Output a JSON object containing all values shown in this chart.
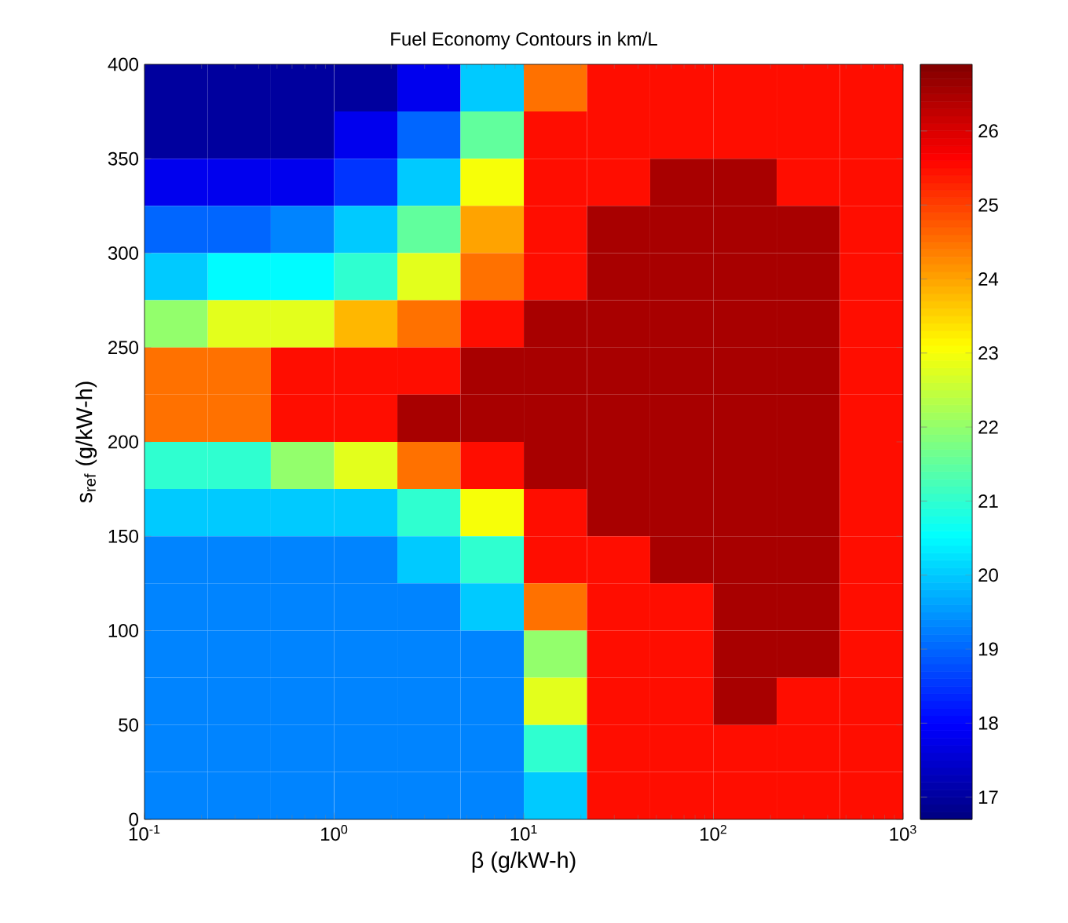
{
  "chart_data": {
    "type": "heatmap",
    "title": "Fuel Economy Contours in km/L",
    "xlabel": "β (g/kW-h)",
    "ylabel": "s$_{ref}$ (g/kW-h)",
    "log": "x",
    "xlim": [
      0.1,
      1000
    ],
    "ylim": [
      0,
      400
    ],
    "xticks": [
      {
        "value": 0.1,
        "label": "10$^{-1}$"
      },
      {
        "value": 1,
        "label": "10$^{0}$"
      },
      {
        "value": 10,
        "label": "10$^{1}$"
      },
      {
        "value": 100,
        "label": "10$^{2}$"
      },
      {
        "value": 1000,
        "label": "10$^{3}$"
      }
    ],
    "yticks": [
      0,
      50,
      100,
      150,
      200,
      250,
      300,
      350,
      400
    ],
    "clim": [
      16.7,
      26.9
    ],
    "cticks": [
      17,
      18,
      19,
      20,
      21,
      22,
      23,
      24,
      25,
      26
    ],
    "x": [
      0.147,
      0.316,
      0.681,
      1.47,
      3.16,
      6.81,
      14.7,
      31.6,
      68.1,
      147,
      316,
      681
    ],
    "y": [
      387.5,
      362.5,
      337.5,
      312.5,
      287.5,
      262.5,
      237.5,
      212.5,
      187.5,
      162.5,
      137.5,
      112.5,
      87.5,
      62.5,
      37.5,
      12.5
    ],
    "cells": [
      [
        17,
        17,
        17,
        17,
        17.8,
        20,
        24.5,
        25.5,
        25.5,
        25.5,
        25.5,
        25.5
      ],
      [
        17,
        17,
        17,
        17.8,
        19,
        21.5,
        25.5,
        25.5,
        25.5,
        25.5,
        25.5,
        25.5
      ],
      [
        17.8,
        17.8,
        17.8,
        18.5,
        20,
        23,
        25.5,
        25.5,
        26.5,
        26.5,
        25.5,
        25.5
      ],
      [
        19,
        19,
        19.3,
        20,
        21.5,
        24,
        25.5,
        26.5,
        26.5,
        26.5,
        26.5,
        25.5
      ],
      [
        20,
        20.5,
        20.5,
        21,
        22.8,
        24.5,
        25.5,
        26.5,
        26.5,
        26.5,
        26.5,
        25.5
      ],
      [
        22,
        22.8,
        22.8,
        23.8,
        24.5,
        25.5,
        26.5,
        26.5,
        26.5,
        26.5,
        26.5,
        25.5
      ],
      [
        24.5,
        24.5,
        25.5,
        25.5,
        25.5,
        26.5,
        26.5,
        26.5,
        26.5,
        26.5,
        26.5,
        25.5
      ],
      [
        24.5,
        24.5,
        25.5,
        25.5,
        26.5,
        26.5,
        26.5,
        26.5,
        26.5,
        26.5,
        26.5,
        25.5
      ],
      [
        21,
        21,
        22,
        22.8,
        24.5,
        25.5,
        26.5,
        26.5,
        26.5,
        26.5,
        26.5,
        25.5
      ],
      [
        20,
        20,
        20,
        20,
        21,
        23,
        25.5,
        26.5,
        26.5,
        26.5,
        26.5,
        25.5
      ],
      [
        19.3,
        19.3,
        19.3,
        19.3,
        20,
        21,
        25.5,
        25.5,
        26.5,
        26.5,
        26.5,
        25.5
      ],
      [
        19.3,
        19.3,
        19.3,
        19.3,
        19.3,
        20,
        24.5,
        25.5,
        25.5,
        26.5,
        26.5,
        25.5
      ],
      [
        19.3,
        19.3,
        19.3,
        19.3,
        19.3,
        19.3,
        22,
        25.5,
        25.5,
        26.5,
        26.5,
        25.5
      ],
      [
        19.3,
        19.3,
        19.3,
        19.3,
        19.3,
        19.3,
        22.8,
        25.5,
        25.5,
        26.5,
        25.5,
        25.5
      ],
      [
        19.3,
        19.3,
        19.3,
        19.3,
        19.3,
        19.3,
        21,
        25.5,
        25.5,
        25.5,
        25.5,
        25.5
      ],
      [
        19.3,
        19.3,
        19.3,
        19.3,
        19.3,
        19.3,
        20,
        25.5,
        25.5,
        25.5,
        25.5,
        25.5
      ]
    ]
  }
}
